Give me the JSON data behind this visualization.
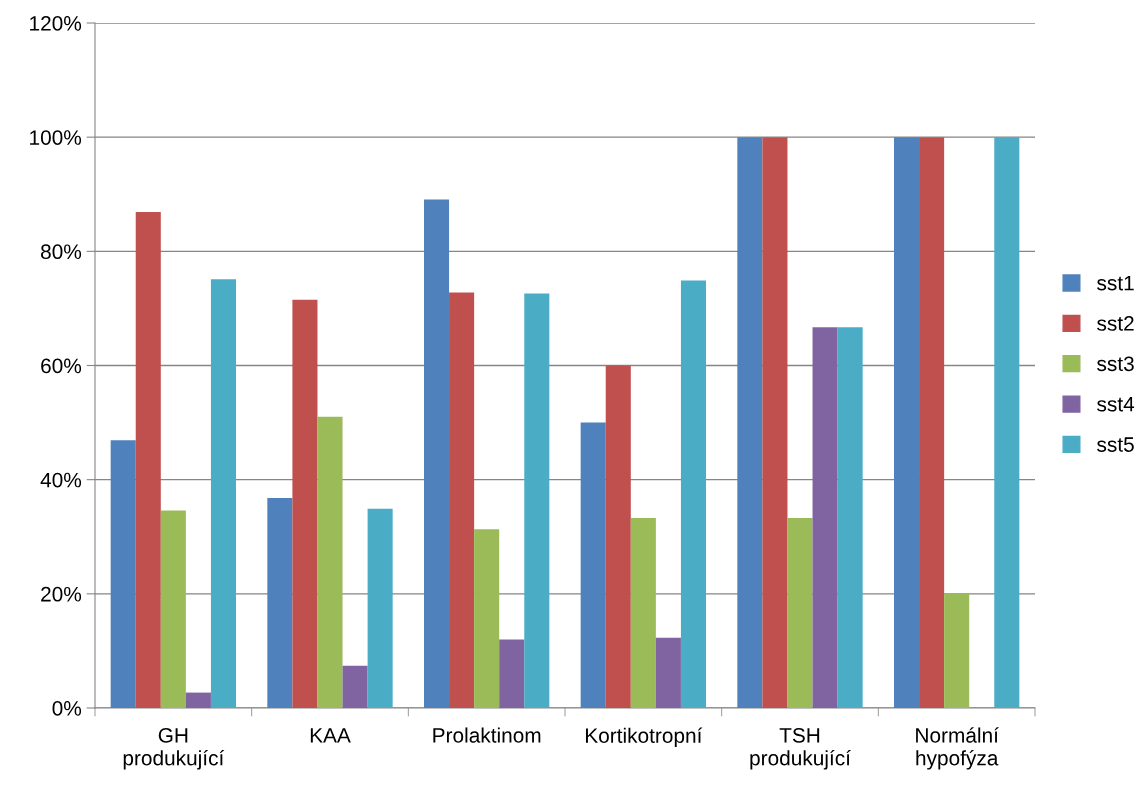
{
  "chart_data": {
    "type": "bar",
    "categories": [
      "GH\nprodukující",
      "KAA",
      "Prolaktinom",
      "Kortikotropní",
      "TSH\nprodukující",
      "Normální\nhypofýza"
    ],
    "series": [
      {
        "name": "sst1",
        "color": "#4f81bd",
        "values": [
          46.9,
          36.8,
          89.1,
          50,
          100,
          100
        ]
      },
      {
        "name": "sst2",
        "color": "#c0504d",
        "values": [
          86.9,
          71.5,
          72.8,
          60,
          100,
          100
        ]
      },
      {
        "name": "sst3",
        "color": "#9bbb59",
        "values": [
          34.6,
          51.0,
          31.3,
          33.3,
          33.3,
          20
        ]
      },
      {
        "name": "sst4",
        "color": "#8064a2",
        "values": [
          2.7,
          7.4,
          12.0,
          12.3,
          66.7,
          0
        ]
      },
      {
        "name": "sst5",
        "color": "#4bacc6",
        "values": [
          75.1,
          34.9,
          72.6,
          74.9,
          66.7,
          100
        ]
      }
    ],
    "ylim": [
      0,
      120
    ],
    "yticks": [
      {
        "value": 0,
        "label": "0%"
      },
      {
        "value": 20,
        "label": "20%"
      },
      {
        "value": 40,
        "label": "40%"
      },
      {
        "value": 60,
        "label": "60%"
      },
      {
        "value": 80,
        "label": "80%"
      },
      {
        "value": 100,
        "label": "100%"
      },
      {
        "value": 120,
        "label": "120%"
      }
    ],
    "grid": "y",
    "legend": "right"
  }
}
